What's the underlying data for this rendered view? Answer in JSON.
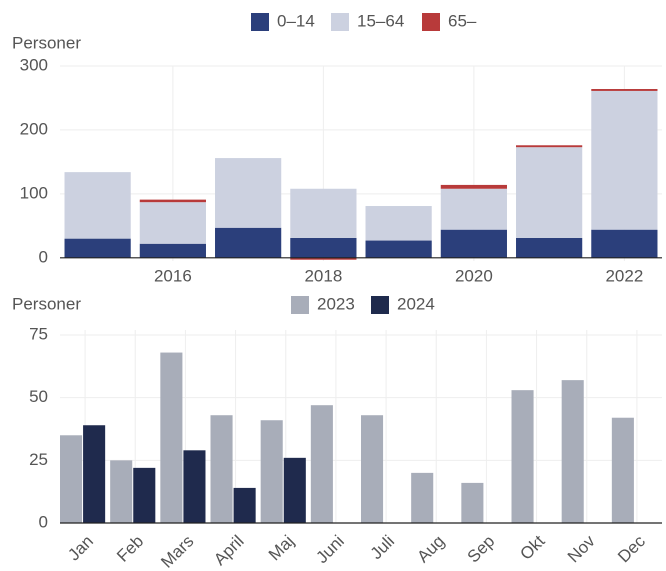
{
  "chart_data": [
    {
      "type": "stacked-bar",
      "y_label": "Personer",
      "x": [
        2015,
        2016,
        2017,
        2018,
        2019,
        2020,
        2021,
        2022
      ],
      "xlim": [
        2014.5,
        2022.5
      ],
      "xticks": [
        2016,
        2018,
        2020,
        2022
      ],
      "ylim": [
        -5,
        300
      ],
      "yticks": [
        0,
        100,
        200,
        300
      ],
      "grid": true,
      "legend": "top",
      "series": [
        {
          "name": "0–14",
          "color": "#2b3f7b",
          "values": [
            30,
            22,
            47,
            31,
            27,
            44,
            31,
            44
          ]
        },
        {
          "name": "15–64",
          "color": "#ccd1e0",
          "values": [
            104,
            65,
            109,
            77,
            54,
            64,
            142,
            217
          ]
        },
        {
          "name": "65–",
          "color": "#b83a3a",
          "values": [
            0,
            4,
            0,
            -3,
            0,
            6,
            3,
            3
          ]
        }
      ]
    },
    {
      "type": "grouped-bar",
      "y_label": "Personer",
      "categories": [
        "Jan",
        "Feb",
        "Mars",
        "April",
        "Maj",
        "Juni",
        "Juli",
        "Aug",
        "Sep",
        "Okt",
        "Nov",
        "Dec"
      ],
      "ylim": [
        0,
        77
      ],
      "yticks": [
        0,
        25,
        50,
        75
      ],
      "grid": true,
      "legend": "top",
      "series": [
        {
          "name": "2023",
          "color": "#a8adb9",
          "values": [
            35,
            25,
            68,
            43,
            41,
            47,
            43,
            20,
            16,
            53,
            57,
            42
          ]
        },
        {
          "name": "2024",
          "color": "#1f2a4d",
          "values": [
            39,
            22,
            29,
            14,
            26,
            null,
            null,
            null,
            null,
            null,
            null,
            null
          ]
        }
      ]
    }
  ]
}
